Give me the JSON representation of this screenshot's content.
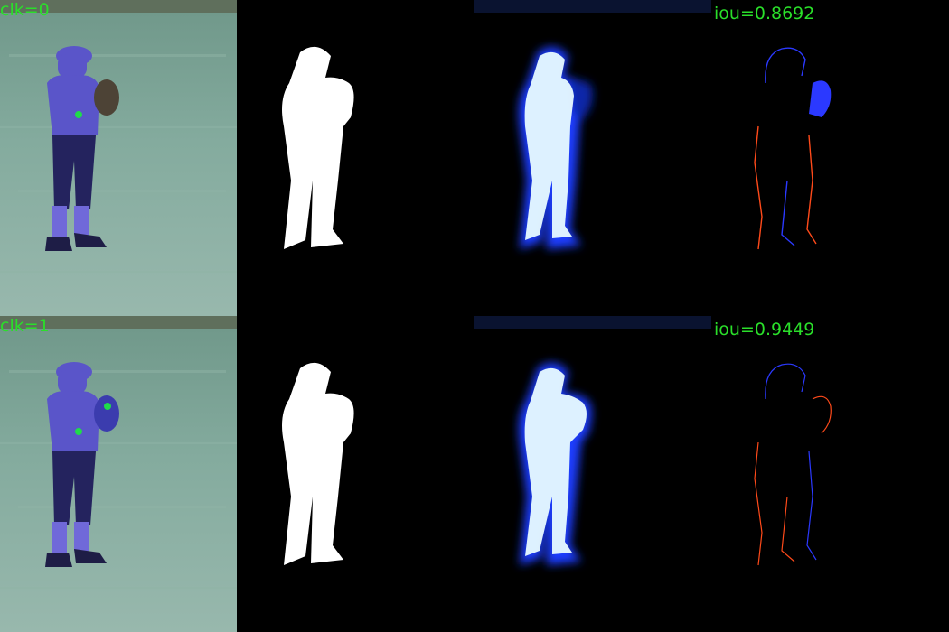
{
  "panels": {
    "rows": [
      {
        "click_label": "clk=0",
        "iou_label": "iou=0.8692"
      },
      {
        "click_label": "clk=1",
        "iou_label": "iou=0.9449"
      }
    ]
  },
  "colors": {
    "label_green": "#2adf2a",
    "mask_white": "#ffffff",
    "prediction_glow": "#1a3dff",
    "error_false_negative": "#ff4a1a",
    "error_false_positive": "#2b39ff",
    "grass": "#7fa79a",
    "overlay_blue": "#5a55c9",
    "click_point": "#1fdc4a"
  },
  "icons": {
    "click_marker": "green-dot-icon"
  }
}
